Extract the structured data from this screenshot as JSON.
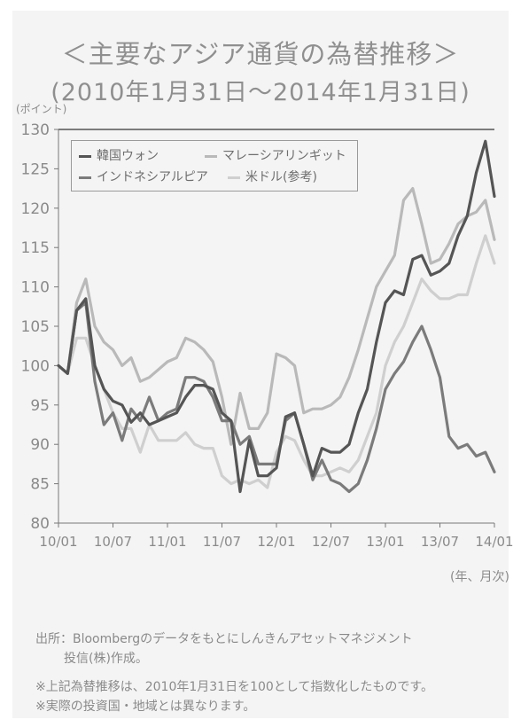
{
  "title": "＜主要なアジア通貨の為替推移＞",
  "subtitle": "(2010年1月31日～2014年1月31日)",
  "y_unit": "(ポイント)",
  "x_unit": "(年、月次)",
  "source_line1": "出所：Bloombergのデータをもとにしんきんアセットマネジメント",
  "source_line2": "投信(株)作成。",
  "note1": "※上記為替推移は、2010年1月31日を100として指数化したものです。",
  "note2": "※実際の投資国・地域とは異なります。",
  "colors": {
    "krw": "#555555",
    "myr": "#b9b9b9",
    "idr": "#7b7b7b",
    "usd": "#cfcfcf",
    "axis": "#777777",
    "gridline": "#555555"
  },
  "chart_data": {
    "type": "line",
    "title": "＜主要なアジア通貨の為替推移＞",
    "subtitle": "(2010年1月31日～2014年1月31日)",
    "ylabel": "(ポイント)",
    "xlabel": "(年、月次)",
    "ylim": [
      80,
      130
    ],
    "yticks": [
      80,
      85,
      90,
      95,
      100,
      105,
      110,
      115,
      120,
      125,
      130
    ],
    "xlim": [
      0,
      48
    ],
    "xticks": [
      {
        "x": 0,
        "label": "10/01"
      },
      {
        "x": 6,
        "label": "10/07"
      },
      {
        "x": 12,
        "label": "11/01"
      },
      {
        "x": 18,
        "label": "11/07"
      },
      {
        "x": 24,
        "label": "12/01"
      },
      {
        "x": 30,
        "label": "12/07"
      },
      {
        "x": 36,
        "label": "13/01"
      },
      {
        "x": 42,
        "label": "13/07"
      },
      {
        "x": 48,
        "label": "14/01"
      }
    ],
    "legend_placement": "top-left",
    "series": [
      {
        "name": "韓国ウォン",
        "color": "#555555",
        "width": 3.2,
        "values": [
          100,
          99,
          107,
          108.5,
          100,
          97,
          95.5,
          95,
          92.8,
          94,
          92.5,
          93,
          93.5,
          94,
          96,
          97.5,
          97.5,
          97,
          94,
          93,
          84,
          90.5,
          86,
          86,
          87,
          93.5,
          94,
          90,
          86,
          89.5,
          89,
          89,
          90,
          94,
          97,
          103,
          108,
          109.5,
          109,
          113.5,
          114,
          111.5,
          112,
          113,
          116.5,
          119,
          124.5,
          128.5,
          121.5
        ]
      },
      {
        "name": "マレーシアリンギット",
        "color": "#b9b9b9",
        "width": 3.2,
        "values": [
          100,
          99,
          108,
          111,
          105,
          103,
          102,
          100,
          101,
          98,
          98.5,
          99.5,
          100.5,
          101,
          103.5,
          103,
          102,
          100.5,
          96,
          90,
          96.5,
          92,
          92,
          94,
          101.5,
          101,
          100,
          94,
          94.5,
          94.5,
          95,
          96,
          98.5,
          102,
          106,
          110,
          112,
          114,
          121,
          122.5,
          118,
          113,
          113.5,
          115.5,
          118,
          119,
          119.5,
          121,
          116
        ]
      },
      {
        "name": "インドネシアルピア",
        "color": "#7b7b7b",
        "width": 3.2,
        "values": [
          100,
          99,
          107,
          108,
          98,
          92.5,
          94,
          90.5,
          94.5,
          93,
          96,
          93,
          94,
          94.5,
          98.5,
          98.5,
          98,
          96,
          93,
          93,
          90,
          91,
          87.5,
          87.5,
          87.5,
          93,
          94,
          90,
          85.5,
          88,
          85.5,
          85,
          84,
          85,
          88,
          92,
          97,
          99,
          100.5,
          103,
          105,
          102,
          98.5,
          91,
          89.5,
          90,
          88.5,
          89,
          86.5
        ]
      },
      {
        "name": "米ドル(参考)",
        "color": "#cfcfcf",
        "width": 3.2,
        "values": [
          100,
          99,
          103.5,
          103.5,
          100,
          97,
          94,
          92,
          92,
          89,
          92.5,
          90.5,
          90.5,
          90.5,
          91.5,
          90,
          89.5,
          89.5,
          86,
          85,
          85.5,
          85,
          85.5,
          84.5,
          89,
          91,
          90.5,
          88,
          86,
          86,
          86.5,
          87,
          86.5,
          88,
          91,
          94,
          100,
          103,
          105,
          108,
          111,
          109.5,
          108.5,
          108.5,
          109,
          109,
          113,
          116.5,
          113
        ]
      }
    ]
  }
}
